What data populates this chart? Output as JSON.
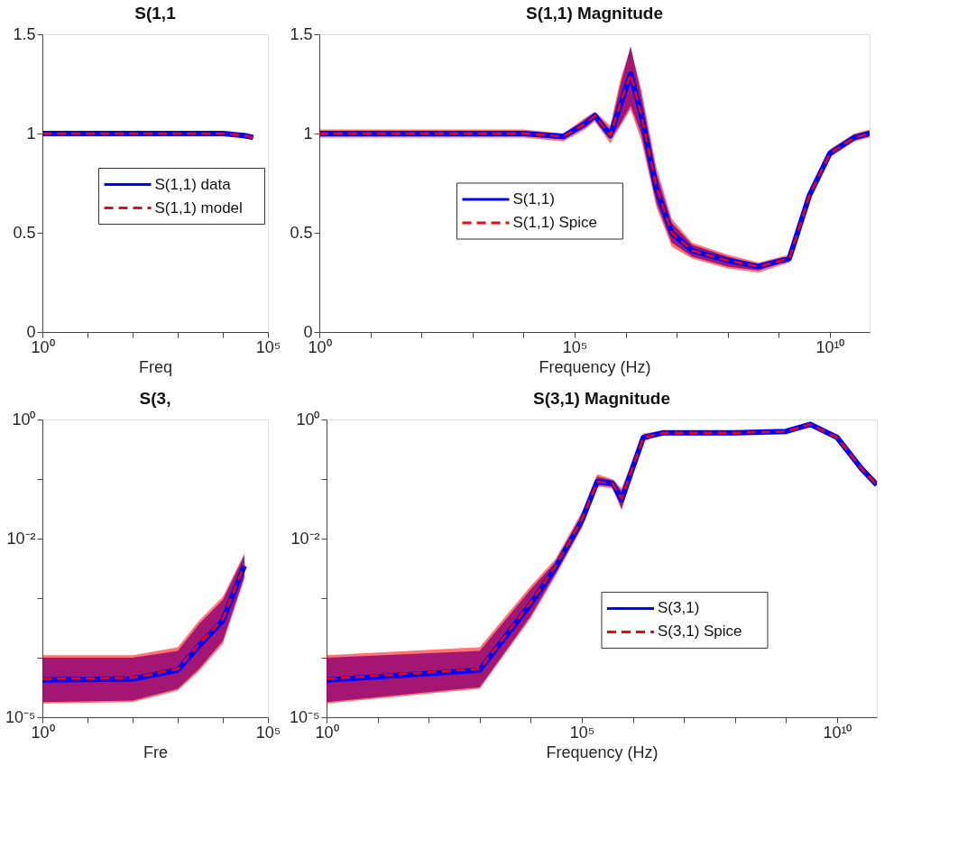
{
  "chart_data": [
    {
      "type": "line",
      "title": "S(1,1",
      "xlabel": "Freq",
      "log": "x",
      "legend": "center",
      "xlim": [
        1,
        100000
      ],
      "xticks": [
        {
          "value": 1,
          "label": "10⁰"
        },
        {
          "value": 10,
          "label": null
        },
        {
          "value": 100,
          "label": null
        },
        {
          "value": 1000,
          "label": null
        },
        {
          "value": 10000,
          "label": null
        },
        {
          "value": 100000,
          "label": "10⁵"
        }
      ],
      "ylim": [
        0,
        1.5
      ],
      "yticks": [
        0,
        0.5,
        1,
        1.5
      ],
      "x": [
        1,
        10,
        100,
        1000,
        10000,
        30000,
        47000
      ],
      "series": [
        {
          "name": "S(1,1) data",
          "color": "#0000ff",
          "line_style": "solid",
          "values": [
            1.0,
            1.0,
            1.0,
            1.0,
            1.0,
            0.99,
            0.98
          ]
        },
        {
          "name": "S(1,1) model",
          "color": "#ff0000",
          "line_style": "dashed",
          "values": [
            1.0,
            1.0,
            1.0,
            1.0,
            1.0,
            0.99,
            0.98
          ]
        }
      ]
    },
    {
      "type": "line",
      "title": "S(1,1) Magnitude",
      "xlabel": "Frequency (Hz)",
      "log": "x",
      "legend": "center left",
      "xlim": [
        1,
        60000000000.0
      ],
      "xticks": [
        {
          "value": 1,
          "label": "10⁰"
        },
        {
          "value": 10,
          "label": null
        },
        {
          "value": 100,
          "label": null
        },
        {
          "value": 1000,
          "label": null
        },
        {
          "value": 10000,
          "label": null
        },
        {
          "value": 100000,
          "label": "10⁵"
        },
        {
          "value": 1000000.0,
          "label": null
        },
        {
          "value": 10000000.0,
          "label": null
        },
        {
          "value": 100000000.0,
          "label": null
        },
        {
          "value": 1000000000.0,
          "label": null
        },
        {
          "value": 10000000000.0,
          "label": "10¹⁰"
        }
      ],
      "ylim": [
        0,
        1.5
      ],
      "yticks": [
        0,
        0.5,
        1,
        1.5
      ],
      "x": [
        1,
        10000,
        60000,
        160000,
        250000,
        500000,
        800000,
        1250000,
        2000000,
        4000000,
        8000000,
        20000000,
        100000000,
        400000000,
        1600000000,
        4000000000,
        10000000000,
        30000000000,
        60000000000
      ],
      "series": [
        {
          "name": "S(1,1)",
          "color": "#0000ff",
          "line_style": "solid",
          "values": [
            1.0,
            1.0,
            0.985,
            1.05,
            1.09,
            0.99,
            1.15,
            1.3,
            1.1,
            0.72,
            0.5,
            0.41,
            0.36,
            0.33,
            0.37,
            0.69,
            0.9,
            0.98,
            1.0
          ],
          "lower": [
            0.99,
            0.99,
            0.97,
            1.03,
            1.07,
            0.97,
            1.05,
            1.14,
            1.0,
            0.65,
            0.45,
            0.38,
            0.33,
            0.31,
            0.36,
            0.68,
            0.89,
            0.97,
            0.99
          ],
          "upper": [
            1.01,
            1.01,
            0.99,
            1.07,
            1.1,
            1.02,
            1.25,
            1.44,
            1.2,
            0.8,
            0.55,
            0.44,
            0.38,
            0.34,
            0.38,
            0.7,
            0.91,
            0.99,
            1.01
          ]
        },
        {
          "name": "S(1,1) Spice",
          "color": "#ff0000",
          "line_style": "dashed",
          "values": [
            1.0,
            1.0,
            0.985,
            1.05,
            1.09,
            0.99,
            1.16,
            1.3,
            1.1,
            0.73,
            0.5,
            0.41,
            0.36,
            0.33,
            0.37,
            0.69,
            0.9,
            0.98,
            1.0
          ],
          "lower": [
            0.98,
            0.98,
            0.96,
            1.02,
            1.06,
            0.95,
            1.04,
            1.12,
            0.97,
            0.63,
            0.43,
            0.37,
            0.32,
            0.3,
            0.35,
            0.67,
            0.88,
            0.96,
            0.98
          ],
          "upper": [
            1.02,
            1.02,
            1.0,
            1.08,
            1.11,
            1.04,
            1.28,
            1.43,
            1.23,
            0.83,
            0.57,
            0.45,
            0.39,
            0.35,
            0.39,
            0.71,
            0.92,
            1.0,
            1.02
          ]
        }
      ]
    },
    {
      "type": "line",
      "title": "S(3,",
      "xlabel": "Fre",
      "log": "xy",
      "xlim": [
        1,
        100000
      ],
      "xticks": [
        {
          "value": 1,
          "label": "10⁰"
        },
        {
          "value": 10,
          "label": null
        },
        {
          "value": 100,
          "label": null
        },
        {
          "value": 1000,
          "label": null
        },
        {
          "value": 10000,
          "label": null
        },
        {
          "value": 100000,
          "label": "10⁵"
        }
      ],
      "ylim": [
        1e-05,
        1
      ],
      "yticks": [
        {
          "value": 1,
          "label": "10⁰"
        },
        {
          "value": 0.1,
          "label": null
        },
        {
          "value": 0.01,
          "label": "10⁻²"
        },
        {
          "value": 0.001,
          "label": null
        },
        {
          "value": 0.0001,
          "label": null
        },
        {
          "value": 1e-05,
          "label": "10⁻⁵"
        }
      ],
      "x": [
        1,
        100,
        1000,
        3000,
        10000,
        30000
      ],
      "series": [
        {
          "color": "#0000ff",
          "line_style": "solid",
          "values": [
            4.2e-05,
            4.4e-05,
            6.2e-05,
            0.00016,
            0.00042,
            0.0035
          ],
          "lower": [
            1.8e-05,
            1.9e-05,
            3e-05,
            6.6e-05,
            0.00019,
            0.0023
          ],
          "upper": [
            0.0001,
            0.0001,
            0.00013,
            0.00037,
            0.00093,
            0.0052
          ]
        },
        {
          "color": "#ff0000",
          "line_style": "dashed",
          "values": [
            4.4e-05,
            4.6e-05,
            6.5e-05,
            0.00017,
            0.00045,
            0.0036
          ],
          "lower": [
            1.7e-05,
            1.8e-05,
            2.8e-05,
            6e-05,
            0.00017,
            0.0021
          ],
          "upper": [
            0.00011,
            0.00011,
            0.00015,
            0.00042,
            0.00105,
            0.0056
          ]
        }
      ]
    },
    {
      "type": "line",
      "title": "S(3,1) Magnitude",
      "xlabel": "Frequency (Hz)",
      "log": "xy",
      "legend": "center right",
      "xlim": [
        1,
        60000000000.0
      ],
      "xticks": [
        {
          "value": 1,
          "label": "10⁰"
        },
        {
          "value": 10,
          "label": null
        },
        {
          "value": 100,
          "label": null
        },
        {
          "value": 1000,
          "label": null
        },
        {
          "value": 10000,
          "label": null
        },
        {
          "value": 100000,
          "label": "10⁵"
        },
        {
          "value": 1000000.0,
          "label": null
        },
        {
          "value": 10000000.0,
          "label": null
        },
        {
          "value": 100000000.0,
          "label": null
        },
        {
          "value": 1000000000.0,
          "label": null
        },
        {
          "value": 10000000000.0,
          "label": "10¹⁰"
        }
      ],
      "ylim": [
        1e-05,
        1
      ],
      "yticks": [
        {
          "value": 1,
          "label": "10⁰"
        },
        {
          "value": 0.1,
          "label": null
        },
        {
          "value": 0.01,
          "label": "10⁻²"
        },
        {
          "value": 0.001,
          "label": null
        },
        {
          "value": 0.0001,
          "label": null
        },
        {
          "value": 1e-05,
          "label": "10⁻⁵"
        }
      ],
      "x": [
        1,
        1000,
        10000,
        30000,
        100000,
        200000,
        400000,
        600000,
        1600000,
        4000000,
        100000000,
        1000000000,
        3000000000,
        10000000000,
        30000000000,
        60000000000
      ],
      "series": [
        {
          "name": "S(3,1)",
          "color": "#0000ff",
          "line_style": "solid",
          "values": [
            4.2e-05,
            6.2e-05,
            0.0008,
            0.0032,
            0.02,
            0.09,
            0.085,
            0.045,
            0.5,
            0.6,
            0.6,
            0.63,
            0.83,
            0.5,
            0.15,
            0.08
          ],
          "lower": [
            1.8e-05,
            3.2e-05,
            0.0005,
            0.0025,
            0.016,
            0.08,
            0.075,
            0.032,
            0.45,
            0.58,
            0.58,
            0.61,
            0.81,
            0.49,
            0.145,
            0.078
          ],
          "upper": [
            0.0001,
            0.00013,
            0.0014,
            0.004,
            0.025,
            0.11,
            0.095,
            0.063,
            0.55,
            0.63,
            0.62,
            0.65,
            0.85,
            0.51,
            0.155,
            0.082
          ]
        },
        {
          "name": "S(3,1) Spice",
          "color": "#ff0000",
          "line_style": "dashed",
          "values": [
            4.4e-05,
            6.5e-05,
            0.00085,
            0.0034,
            0.021,
            0.09,
            0.085,
            0.047,
            0.5,
            0.6,
            0.6,
            0.63,
            0.83,
            0.5,
            0.15,
            0.08
          ],
          "lower": [
            1.7e-05,
            3e-05,
            0.00046,
            0.0023,
            0.015,
            0.075,
            0.07,
            0.03,
            0.43,
            0.57,
            0.57,
            0.6,
            0.8,
            0.48,
            0.14,
            0.076
          ],
          "upper": [
            0.00011,
            0.00015,
            0.0016,
            0.0045,
            0.028,
            0.12,
            0.1,
            0.07,
            0.58,
            0.65,
            0.64,
            0.67,
            0.87,
            0.52,
            0.16,
            0.085
          ]
        }
      ]
    }
  ]
}
